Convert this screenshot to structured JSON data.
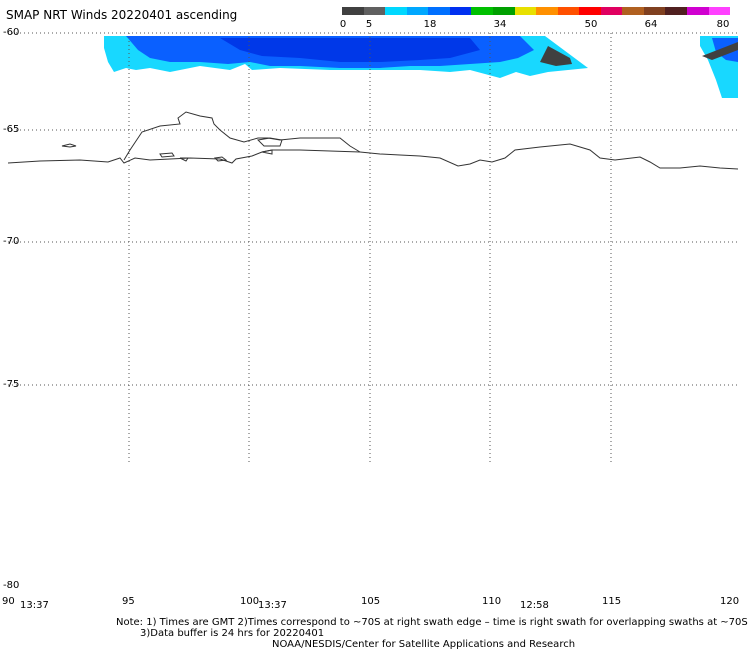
{
  "title": "SMAP NRT Winds 20220401 ascending",
  "colorbar": {
    "labels": [
      "0",
      "5",
      "18",
      "34",
      "50",
      "64",
      "80"
    ],
    "colors": [
      "#404040",
      "#606060",
      "#00d8ff",
      "#00a8ff",
      "#0070ff",
      "#0030f0",
      "#00c000",
      "#00a000",
      "#e8e000",
      "#ff9000",
      "#ff5000",
      "#ff0000",
      "#e00060",
      "#b06020",
      "#804020",
      "#502020",
      "#d000d0",
      "#ff40ff"
    ]
  },
  "map": {
    "lat_labels": [
      "-60",
      "-65",
      "-70",
      "-75",
      "-80"
    ],
    "lon_labels": [
      "90",
      "95",
      "100",
      "105",
      "110",
      "115",
      "120"
    ],
    "times": [
      "13:37",
      "13:37",
      "12:58"
    ]
  },
  "notes": {
    "line1": "Note: 1) Times are GMT 2)Times correspond to ~70S at right swath edge – time is right swath for overlapping swaths at ~70S",
    "line2": "3)Data buffer is 24 hrs for 20220401",
    "line3": "NOAA/NESDIS/Center for Satellite Applications and Research"
  }
}
